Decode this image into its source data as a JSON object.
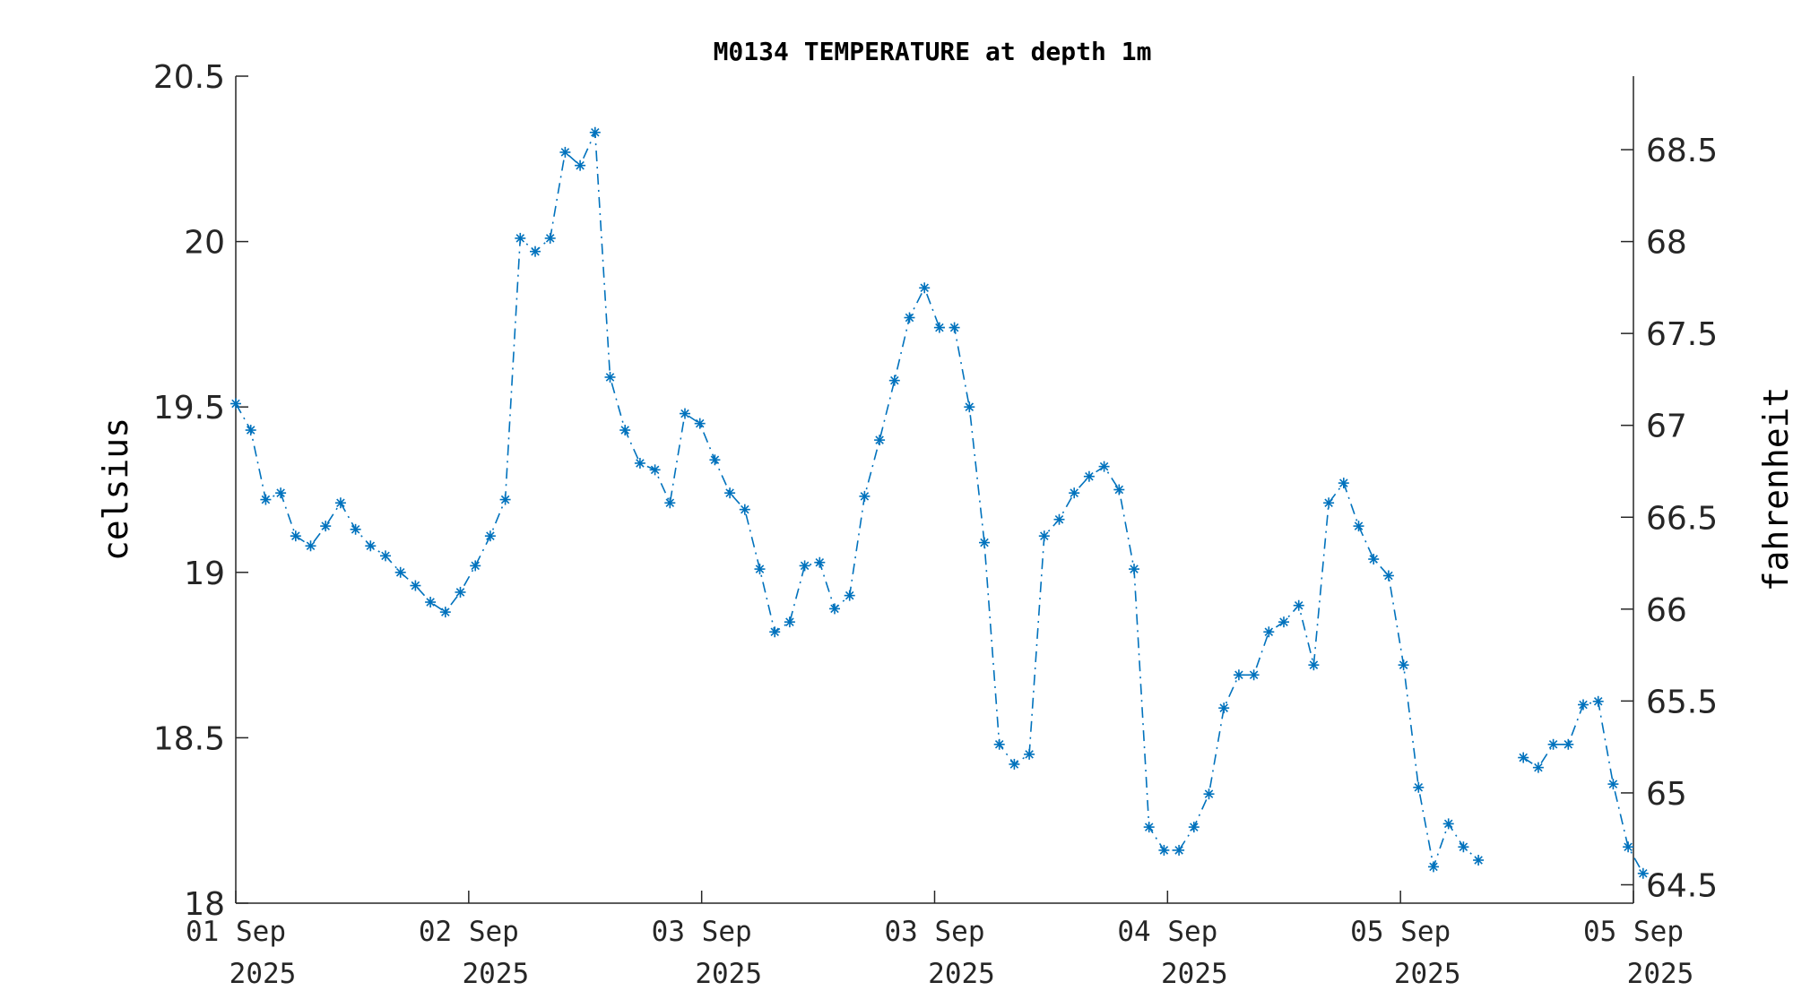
{
  "chart_data": {
    "type": "line",
    "title": "M0134 TEMPERATURE at depth 1m",
    "ylabel": "celsius",
    "ylabel_right": "fahrenheit",
    "ylim": [
      18,
      20.5
    ],
    "yticks": [
      "18",
      "18.5",
      "19",
      "19.5",
      "20",
      "20.5"
    ],
    "yticks_right": [
      "64.5",
      "65",
      "65.5",
      "66",
      "66.5",
      "67",
      "67.5",
      "68",
      "68.5"
    ],
    "xticks": [
      {
        "day": "01 Sep",
        "year": "2025"
      },
      {
        "day": "02 Sep",
        "year": "2025"
      },
      {
        "day": "03 Sep",
        "year": "2025"
      },
      {
        "day": "03 Sep",
        "year": "2025"
      },
      {
        "day": "04 Sep",
        "year": "2025"
      },
      {
        "day": "05 Sep",
        "year": "2025"
      },
      {
        "day": "05 Sep",
        "year": "2025"
      }
    ],
    "grid": false,
    "legend": "none",
    "series_color": "#0072BD",
    "marker": "asterisk",
    "line_style": "dash-dot",
    "segments": [
      [
        19.51,
        19.43,
        19.22,
        19.24,
        19.11,
        19.08,
        19.14,
        19.21,
        19.13,
        19.08,
        19.05,
        19.0,
        18.96,
        18.91,
        18.88,
        18.94,
        19.02,
        19.11,
        19.22,
        20.01,
        19.97,
        20.01,
        20.27,
        20.23,
        20.33,
        19.59,
        19.43,
        19.33,
        19.31,
        19.21,
        19.48,
        19.45,
        19.34,
        19.24,
        19.19,
        19.01,
        18.82,
        18.85,
        19.02,
        19.03,
        18.89,
        18.93,
        19.23,
        19.4,
        19.58,
        19.77,
        19.86,
        19.74,
        19.74,
        19.5,
        19.09,
        18.48,
        18.42,
        18.45,
        19.11,
        19.16,
        19.24,
        19.29,
        19.32,
        19.25,
        19.01,
        18.23,
        18.16,
        18.16,
        18.23,
        18.33,
        18.59,
        18.69,
        18.69,
        18.82,
        18.85,
        18.9,
        18.72,
        19.21,
        19.27,
        19.14,
        19.04,
        18.99,
        18.72,
        18.35,
        18.11,
        18.24,
        18.17,
        18.13
      ],
      [
        18.44,
        18.41,
        18.48,
        18.48,
        18.6,
        18.61,
        18.36,
        18.17,
        18.09
      ]
    ],
    "segment_start_index": [
      0,
      86
    ]
  }
}
